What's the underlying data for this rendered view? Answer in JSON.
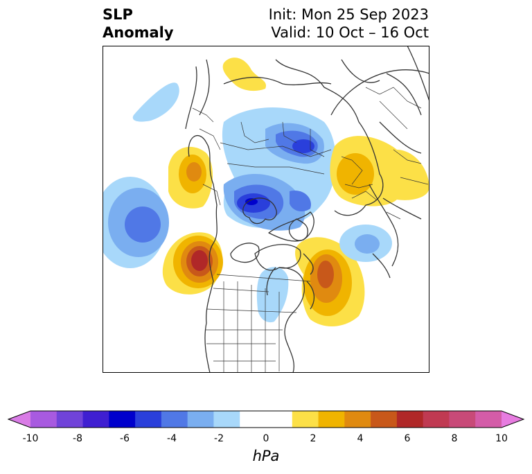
{
  "title": {
    "left_lines": [
      "SLP",
      "Anomaly"
    ],
    "right_lines": [
      "Init: Mon 25 Sep 2023",
      "Valid: 10 Oct – 16 Oct"
    ]
  },
  "map": {
    "projection": "north-polar-stereographic",
    "features": [
      "country-borders",
      "us-state-borders",
      "canadian-province-borders",
      "coastlines"
    ],
    "anomalies": [
      {
        "name": "pacific-low",
        "sign": "negative",
        "peak_hpa": -4
      },
      {
        "name": "north-pacific-low",
        "sign": "negative",
        "peak_hpa": -2
      },
      {
        "name": "western-north-america-high",
        "sign": "positive",
        "peak_hpa": 7
      },
      {
        "name": "bering-alaska-high",
        "sign": "positive",
        "peak_hpa": 4
      },
      {
        "name": "arctic-siberia-low",
        "sign": "negative",
        "peak_hpa": -6
      },
      {
        "name": "canadian-arctic-low",
        "sign": "negative",
        "peak_hpa": -4
      },
      {
        "name": "northeast-atlantic-high",
        "sign": "positive",
        "peak_hpa": 6
      },
      {
        "name": "great-lakes-low",
        "sign": "negative",
        "peak_hpa": -2
      },
      {
        "name": "north-atlantic-low",
        "sign": "negative",
        "peak_hpa": -3
      },
      {
        "name": "europe-high",
        "sign": "positive",
        "peak_hpa": 3
      },
      {
        "name": "kamchatka-high",
        "sign": "positive",
        "peak_hpa": 1
      }
    ]
  },
  "colorbar": {
    "unit": "hPa",
    "levels": [
      -10,
      -9,
      -8,
      -7,
      -6,
      -5,
      -4,
      -3,
      -2,
      -1,
      1,
      2,
      3,
      4,
      5,
      6,
      7,
      8,
      9,
      10
    ],
    "ticks": [
      "-10",
      "-8",
      "-6",
      "-4",
      "-2",
      "0",
      "2",
      "4",
      "6",
      "8",
      "10"
    ],
    "under_color": "#d97ce6",
    "over_color": "#e77ce0",
    "colors": [
      "#d97ce6",
      "#a85ae0",
      "#7043d9",
      "#3f1fd1",
      "#0000cc",
      "#2a3fdb",
      "#5078e6",
      "#7aaef0",
      "#a8d8fa",
      "#ffffff",
      "#ffffff",
      "#fce047",
      "#f0b400",
      "#e08a10",
      "#c8581a",
      "#b02828",
      "#c03a52",
      "#c84a78",
      "#d45ca8",
      "#e77ce0"
    ]
  }
}
